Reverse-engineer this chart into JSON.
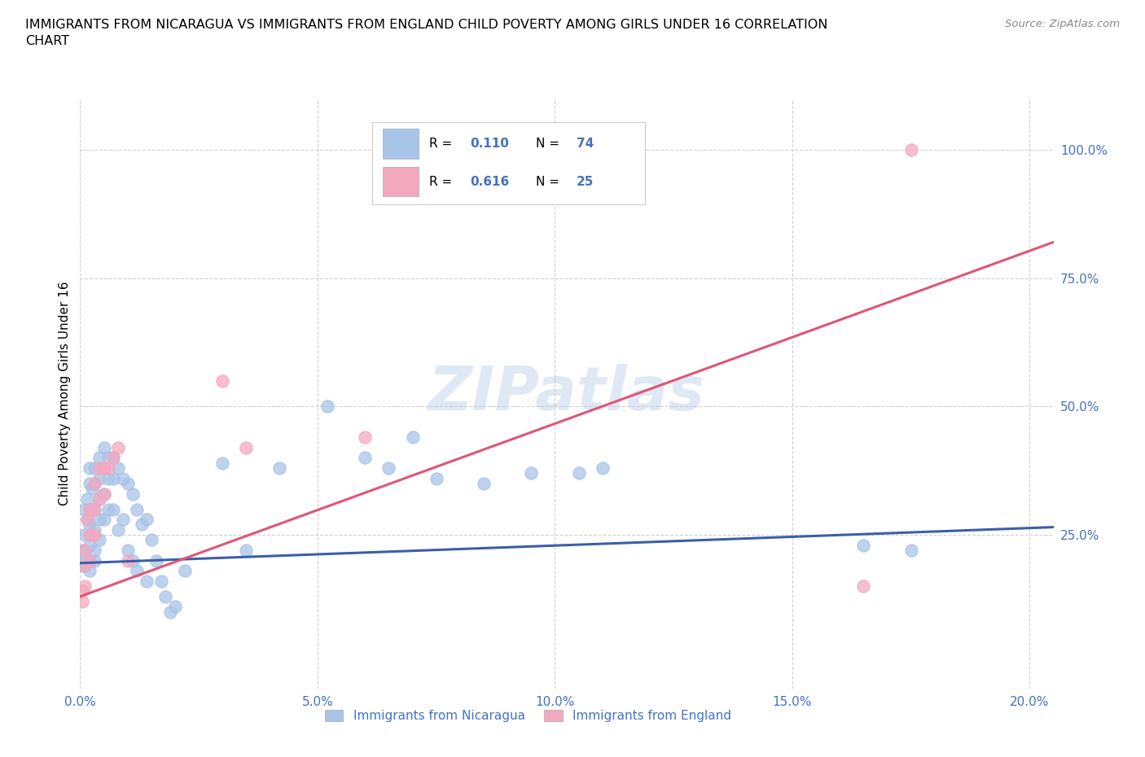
{
  "title": "IMMIGRANTS FROM NICARAGUA VS IMMIGRANTS FROM ENGLAND CHILD POVERTY AMONG GIRLS UNDER 16 CORRELATION\nCHART",
  "source": "Source: ZipAtlas.com",
  "ylabel": "Child Poverty Among Girls Under 16",
  "watermark": "ZIPatlas",
  "nicaragua_R": 0.11,
  "nicaragua_N": 74,
  "england_R": 0.616,
  "england_N": 25,
  "blue_scatter_color": "#a8c4e8",
  "pink_scatter_color": "#f4a8c0",
  "blue_line_color": "#3a5fa8",
  "pink_line_color": "#e05575",
  "text_blue": "#4472c4",
  "axis_label_color": "#4472c4",
  "grid_color": "#d0d0d0",
  "xlim": [
    0.0,
    0.205
  ],
  "ylim": [
    -0.05,
    1.1
  ],
  "xticks": [
    0.0,
    0.05,
    0.1,
    0.15,
    0.2
  ],
  "yticks_right": [
    0.25,
    0.5,
    0.75,
    1.0
  ],
  "nic_line_x0": 0.0,
  "nic_line_y0": 0.195,
  "nic_line_x1": 0.205,
  "nic_line_y1": 0.265,
  "eng_line_x0": 0.0,
  "eng_line_y0": 0.13,
  "eng_line_x1": 0.205,
  "eng_line_y1": 0.82,
  "nicaragua_x": [
    0.0005,
    0.0005,
    0.0008,
    0.001,
    0.001,
    0.001,
    0.001,
    0.001,
    0.0015,
    0.0015,
    0.002,
    0.002,
    0.002,
    0.002,
    0.002,
    0.002,
    0.002,
    0.0025,
    0.0025,
    0.003,
    0.003,
    0.003,
    0.003,
    0.003,
    0.003,
    0.004,
    0.004,
    0.004,
    0.004,
    0.004,
    0.005,
    0.005,
    0.005,
    0.005,
    0.006,
    0.006,
    0.006,
    0.007,
    0.007,
    0.007,
    0.008,
    0.008,
    0.009,
    0.009,
    0.01,
    0.01,
    0.011,
    0.011,
    0.012,
    0.012,
    0.013,
    0.014,
    0.014,
    0.015,
    0.016,
    0.017,
    0.018,
    0.019,
    0.02,
    0.022,
    0.03,
    0.035,
    0.042,
    0.052,
    0.06,
    0.065,
    0.07,
    0.075,
    0.085,
    0.095,
    0.105,
    0.11,
    0.165,
    0.175
  ],
  "nicaragua_y": [
    0.22,
    0.19,
    0.2,
    0.3,
    0.25,
    0.22,
    0.2,
    0.19,
    0.32,
    0.28,
    0.38,
    0.35,
    0.3,
    0.27,
    0.23,
    0.2,
    0.18,
    0.34,
    0.3,
    0.38,
    0.35,
    0.3,
    0.26,
    0.22,
    0.2,
    0.4,
    0.36,
    0.32,
    0.28,
    0.24,
    0.42,
    0.38,
    0.33,
    0.28,
    0.4,
    0.36,
    0.3,
    0.4,
    0.36,
    0.3,
    0.38,
    0.26,
    0.36,
    0.28,
    0.35,
    0.22,
    0.33,
    0.2,
    0.3,
    0.18,
    0.27,
    0.28,
    0.16,
    0.24,
    0.2,
    0.16,
    0.13,
    0.1,
    0.11,
    0.18,
    0.39,
    0.22,
    0.38,
    0.5,
    0.4,
    0.38,
    0.44,
    0.36,
    0.35,
    0.37,
    0.37,
    0.38,
    0.23,
    0.22
  ],
  "england_x": [
    0.0004,
    0.0005,
    0.001,
    0.001,
    0.001,
    0.0015,
    0.002,
    0.002,
    0.002,
    0.003,
    0.003,
    0.003,
    0.004,
    0.004,
    0.005,
    0.005,
    0.006,
    0.007,
    0.008,
    0.01,
    0.03,
    0.035,
    0.06,
    0.165,
    0.175
  ],
  "england_y": [
    0.14,
    0.12,
    0.22,
    0.19,
    0.15,
    0.28,
    0.3,
    0.25,
    0.2,
    0.35,
    0.3,
    0.25,
    0.38,
    0.32,
    0.38,
    0.33,
    0.38,
    0.4,
    0.42,
    0.2,
    0.55,
    0.42,
    0.44,
    0.15,
    1.0
  ]
}
